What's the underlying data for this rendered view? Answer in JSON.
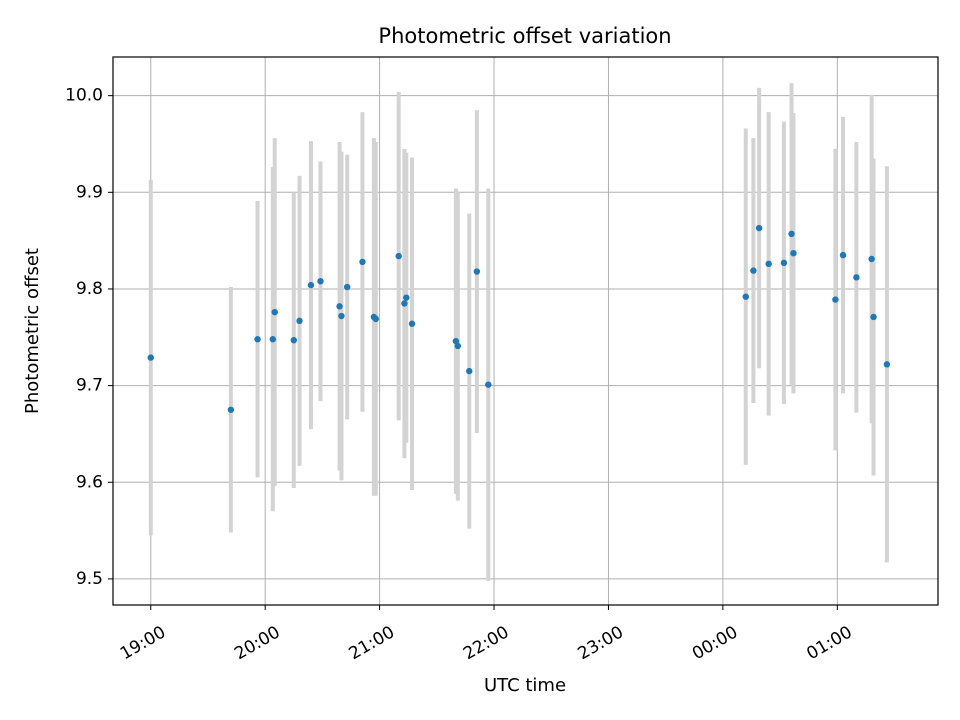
{
  "chart_data": {
    "type": "scatter",
    "title": "Photometric offset variation",
    "xlabel": "UTC time",
    "ylabel": "Photometric offset",
    "x_ticks": [
      "19:00",
      "20:00",
      "21:00",
      "22:00",
      "23:00",
      "00:00",
      "01:00"
    ],
    "x_tick_hours": [
      0,
      1,
      2,
      3,
      4,
      5,
      6
    ],
    "y_ticks": [
      "9.5",
      "9.6",
      "9.7",
      "9.8",
      "9.9",
      "10.0"
    ],
    "y_tick_values": [
      9.5,
      9.6,
      9.7,
      9.8,
      9.9,
      10.0
    ],
    "x_range_hours_since_19": [
      -0.33,
      6.88
    ],
    "ylim": [
      9.473,
      10.04
    ],
    "grid": true,
    "errorbar_color": "#d3d3d3",
    "marker_color": "#1f77b4",
    "series": [
      {
        "points": [
          {
            "t": "19:00",
            "y": 9.729,
            "err": 0.184
          },
          {
            "t": "19:42",
            "y": 9.675,
            "err": 0.127
          },
          {
            "t": "19:56",
            "y": 9.748,
            "err": 0.143
          },
          {
            "t": "20:04",
            "y": 9.748,
            "err": 0.178
          },
          {
            "t": "20:05",
            "y": 9.776,
            "err": 0.18
          },
          {
            "t": "20:15",
            "y": 9.747,
            "err": 0.153
          },
          {
            "t": "20:18",
            "y": 9.767,
            "err": 0.15
          },
          {
            "t": "20:24",
            "y": 9.804,
            "err": 0.149
          },
          {
            "t": "20:29",
            "y": 9.808,
            "err": 0.124
          },
          {
            "t": "20:39",
            "y": 9.782,
            "err": 0.17
          },
          {
            "t": "20:40",
            "y": 9.772,
            "err": 0.17
          },
          {
            "t": "20:43",
            "y": 9.802,
            "err": 0.137
          },
          {
            "t": "20:51",
            "y": 9.828,
            "err": 0.155
          },
          {
            "t": "20:57",
            "y": 9.771,
            "err": 0.185
          },
          {
            "t": "20:58",
            "y": 9.769,
            "err": 0.183
          },
          {
            "t": "21:10",
            "y": 9.834,
            "err": 0.17
          },
          {
            "t": "21:13",
            "y": 9.785,
            "err": 0.16
          },
          {
            "t": "21:14",
            "y": 9.791,
            "err": 0.15
          },
          {
            "t": "21:17",
            "y": 9.764,
            "err": 0.172
          },
          {
            "t": "21:40",
            "y": 9.746,
            "err": 0.158
          },
          {
            "t": "21:41",
            "y": 9.741,
            "err": 0.16
          },
          {
            "t": "21:47",
            "y": 9.715,
            "err": 0.163
          },
          {
            "t": "21:51",
            "y": 9.818,
            "err": 0.167
          },
          {
            "t": "21:57",
            "y": 9.701,
            "err": 0.203
          },
          {
            "t": "00:12",
            "y": 9.792,
            "err": 0.174
          },
          {
            "t": "00:16",
            "y": 9.819,
            "err": 0.137
          },
          {
            "t": "00:19",
            "y": 9.863,
            "err": 0.145
          },
          {
            "t": "00:24",
            "y": 9.826,
            "err": 0.157
          },
          {
            "t": "00:32",
            "y": 9.827,
            "err": 0.146
          },
          {
            "t": "00:36",
            "y": 9.857,
            "err": 0.156
          },
          {
            "t": "00:37",
            "y": 9.837,
            "err": 0.145
          },
          {
            "t": "00:59",
            "y": 9.789,
            "err": 0.156
          },
          {
            "t": "01:03",
            "y": 9.835,
            "err": 0.143
          },
          {
            "t": "01:10",
            "y": 9.812,
            "err": 0.14
          },
          {
            "t": "01:18",
            "y": 9.831,
            "err": 0.17
          },
          {
            "t": "01:19",
            "y": 9.771,
            "err": 0.164
          },
          {
            "t": "01:26",
            "y": 9.722,
            "err": 0.205
          }
        ]
      }
    ]
  }
}
